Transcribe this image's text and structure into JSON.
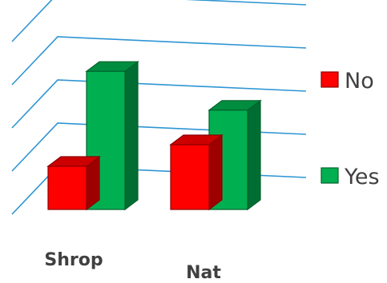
{
  "chart_data": {
    "type": "bar",
    "style": "3d-clustered-column",
    "categories": [
      "Shrop",
      "Nat"
    ],
    "series": [
      {
        "name": "No",
        "values": [
          1.0,
          1.5
        ],
        "color": "#ff0000"
      },
      {
        "name": "Yes",
        "values": [
          3.2,
          2.3
        ],
        "color": "#00b050"
      }
    ],
    "ylim": [
      0,
      4
    ],
    "gridlines": true,
    "gridline_color": "#2e95d3",
    "legend_position": "right"
  }
}
